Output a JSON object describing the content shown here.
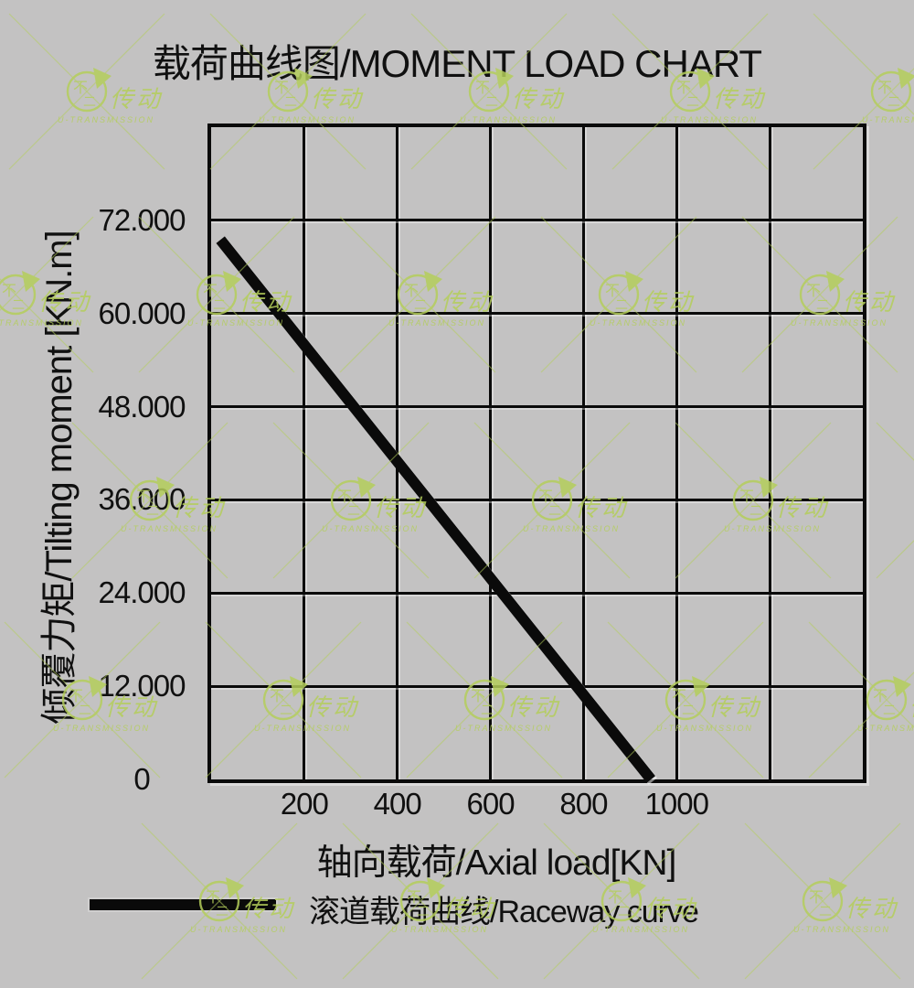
{
  "page": {
    "background": "#c3c2c2"
  },
  "title": "载荷曲线图/MOMENT LOAD CHART",
  "chart_data": {
    "type": "line",
    "title": "载荷曲线图/MOMENT LOAD CHART",
    "xlabel": "轴向载荷/Axial load[KN]",
    "ylabel": "倾覆力矩/Tilting moment [KN.m]",
    "xlim": [
      0,
      1400
    ],
    "ylim": [
      0,
      84
    ],
    "x_grid_step": 200,
    "y_grid_step": 12,
    "grid": true,
    "grid_columns": 7,
    "grid_rows": 7,
    "x_tick_labels": [
      "200",
      "400",
      "600",
      "800",
      "1000"
    ],
    "x_tick_values": [
      200,
      400,
      600,
      800,
      1000
    ],
    "y_tick_labels": [
      "72.000",
      "60.000",
      "48.000",
      "36.000",
      "24.000",
      "12.000",
      "0"
    ],
    "y_tick_values": [
      72,
      60,
      48,
      36,
      24,
      12,
      0
    ],
    "legend_position": "bottom-left",
    "series": [
      {
        "name": "滚道载荷曲线/Raceway curve",
        "color": "#0a0a0a",
        "points": [
          [
            20,
            69.5
          ],
          [
            945,
            0
          ]
        ]
      }
    ]
  },
  "legend": {
    "label": "滚道载荷曲线/Raceway curve",
    "swatch_color": "#0a0a0a"
  },
  "watermark": {
    "logo_top": "不",
    "logo_bottom": "二",
    "brand": "传动",
    "subtext": "U-TRANSMISSION",
    "color": "#b4ce5b"
  }
}
